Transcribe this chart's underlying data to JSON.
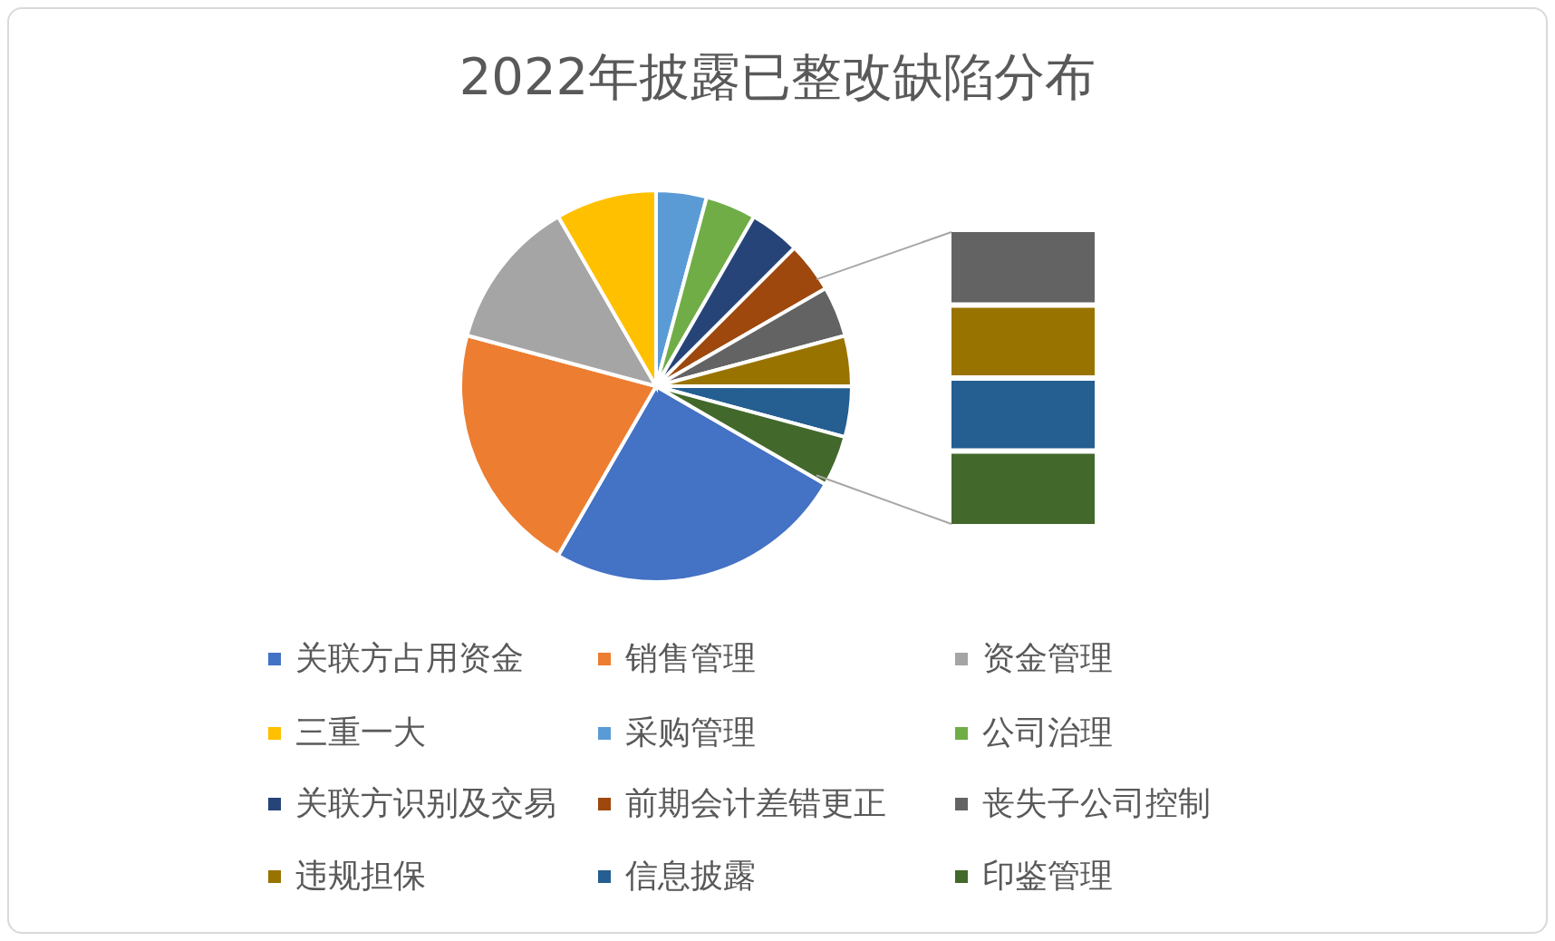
{
  "chart_data": {
    "type": "pie",
    "title": "2022年披露已整改缺陷分布",
    "categories": [
      "关联方占用资金",
      "销售管理",
      "资金管理",
      "三重一大",
      "采购管理",
      "公司治理",
      "关联方识别及交易",
      "前期会计差错更正",
      "丧失子公司控制",
      "违规担保",
      "信息披露",
      "印鉴管理"
    ],
    "values": [
      25,
      20.83,
      12.5,
      8.33,
      4.17,
      4.17,
      4.17,
      4.17,
      4.17,
      4.17,
      4.17,
      4.17
    ],
    "colors": [
      "#4472c4",
      "#ed7d31",
      "#a5a5a5",
      "#ffc000",
      "#5b9bd5",
      "#70ad47",
      "#264478",
      "#9e480e",
      "#636363",
      "#997300",
      "#255e91",
      "#43682b"
    ],
    "legend": "bottom"
  }
}
